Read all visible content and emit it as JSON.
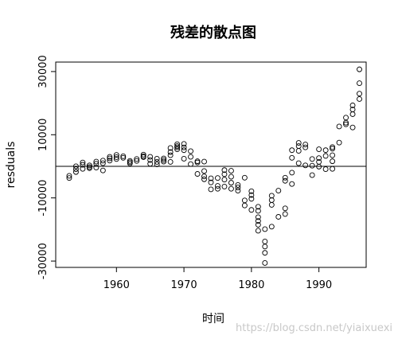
{
  "chart_data": {
    "type": "scatter",
    "title": "残差的散点图",
    "xlabel": "时间",
    "ylabel": "resduals",
    "xlim": [
      1951,
      1997
    ],
    "ylim": [
      -32000,
      33000
    ],
    "x_ticks": [
      1960,
      1970,
      1980,
      1990
    ],
    "x_tick_labels": [
      "1960",
      "1970",
      "1980",
      "1990"
    ],
    "y_ticks": [
      -30000,
      -10000,
      10000,
      30000
    ],
    "y_tick_labels": [
      "-30000",
      "-10000",
      "10000",
      "30000"
    ],
    "reference_line": 0,
    "grid": false,
    "legend": "none",
    "marker": "open-circle",
    "points": [
      [
        1953,
        -3000
      ],
      [
        1953,
        -3700
      ],
      [
        1954,
        0
      ],
      [
        1954,
        -1800
      ],
      [
        1954,
        -900
      ],
      [
        1955,
        -800
      ],
      [
        1955,
        1200
      ],
      [
        1955,
        500
      ],
      [
        1956,
        300
      ],
      [
        1956,
        -600
      ],
      [
        1956,
        -200
      ],
      [
        1957,
        800
      ],
      [
        1957,
        -400
      ],
      [
        1957,
        1500
      ],
      [
        1958,
        1000
      ],
      [
        1958,
        -1300
      ],
      [
        1958,
        1800
      ],
      [
        1959,
        1800
      ],
      [
        1959,
        2500
      ],
      [
        1959,
        3000
      ],
      [
        1960,
        2900
      ],
      [
        1960,
        2300
      ],
      [
        1960,
        3600
      ],
      [
        1961,
        3200
      ],
      [
        1961,
        2700
      ],
      [
        1962,
        1300
      ],
      [
        1962,
        900
      ],
      [
        1962,
        1700
      ],
      [
        1963,
        1700
      ],
      [
        1963,
        2300
      ],
      [
        1964,
        3700
      ],
      [
        1964,
        2900
      ],
      [
        1964,
        3200
      ],
      [
        1965,
        3000
      ],
      [
        1965,
        2000
      ],
      [
        1965,
        800
      ],
      [
        1966,
        2400
      ],
      [
        1966,
        600
      ],
      [
        1966,
        1400
      ],
      [
        1967,
        2000
      ],
      [
        1967,
        1500
      ],
      [
        1967,
        2500
      ],
      [
        1968,
        4500
      ],
      [
        1968,
        3500
      ],
      [
        1968,
        5800
      ],
      [
        1968,
        1400
      ],
      [
        1969,
        6400
      ],
      [
        1969,
        5400
      ],
      [
        1969,
        6000
      ],
      [
        1969,
        7000
      ],
      [
        1970,
        6000
      ],
      [
        1970,
        7100
      ],
      [
        1970,
        5100
      ],
      [
        1970,
        2400
      ],
      [
        1971,
        4800
      ],
      [
        1971,
        3000
      ],
      [
        1971,
        700
      ],
      [
        1972,
        1200
      ],
      [
        1972,
        1600
      ],
      [
        1972,
        -2400
      ],
      [
        1973,
        1500
      ],
      [
        1973,
        -3200
      ],
      [
        1973,
        -4100
      ],
      [
        1973,
        -1500
      ],
      [
        1974,
        -3800
      ],
      [
        1974,
        -5100
      ],
      [
        1974,
        -7300
      ],
      [
        1975,
        -3700
      ],
      [
        1975,
        -6200
      ],
      [
        1975,
        -7100
      ],
      [
        1976,
        -1200
      ],
      [
        1976,
        -2500
      ],
      [
        1976,
        -4200
      ],
      [
        1976,
        -6400
      ],
      [
        1977,
        -1400
      ],
      [
        1977,
        -3300
      ],
      [
        1977,
        -5200
      ],
      [
        1977,
        -7100
      ],
      [
        1978,
        -5900
      ],
      [
        1978,
        -7700
      ],
      [
        1978,
        -6700
      ],
      [
        1979,
        -3600
      ],
      [
        1979,
        -10800
      ],
      [
        1979,
        -12400
      ],
      [
        1980,
        -7900
      ],
      [
        1980,
        -10300
      ],
      [
        1980,
        -9100
      ],
      [
        1980,
        -13800
      ],
      [
        1981,
        -17300
      ],
      [
        1981,
        -18500
      ],
      [
        1981,
        -20400
      ],
      [
        1981,
        -16100
      ],
      [
        1981,
        -14100
      ],
      [
        1981,
        -12800
      ],
      [
        1982,
        -19900
      ],
      [
        1982,
        -23800
      ],
      [
        1982,
        -25400
      ],
      [
        1982,
        -27400
      ],
      [
        1982,
        -30600
      ],
      [
        1983,
        -19100
      ],
      [
        1983,
        -12200
      ],
      [
        1983,
        -10700
      ],
      [
        1983,
        -9300
      ],
      [
        1984,
        -16000
      ],
      [
        1984,
        -7700
      ],
      [
        1985,
        -15100
      ],
      [
        1985,
        -13300
      ],
      [
        1985,
        -4600
      ],
      [
        1985,
        -3600
      ],
      [
        1986,
        -5600
      ],
      [
        1986,
        -2000
      ],
      [
        1986,
        2700
      ],
      [
        1986,
        5100
      ],
      [
        1987,
        7400
      ],
      [
        1987,
        6400
      ],
      [
        1987,
        4900
      ],
      [
        1987,
        1000
      ],
      [
        1988,
        6000
      ],
      [
        1988,
        6900
      ],
      [
        1988,
        300
      ],
      [
        1989,
        -2800
      ],
      [
        1989,
        200
      ],
      [
        1989,
        2300
      ],
      [
        1990,
        5400
      ],
      [
        1990,
        2600
      ],
      [
        1990,
        1400
      ],
      [
        1990,
        -100
      ],
      [
        1991,
        3300
      ],
      [
        1991,
        5100
      ],
      [
        1991,
        -900
      ],
      [
        1992,
        -800
      ],
      [
        1992,
        1600
      ],
      [
        1992,
        3500
      ],
      [
        1992,
        5600
      ],
      [
        1992,
        6100
      ],
      [
        1993,
        7500
      ],
      [
        1993,
        12600
      ],
      [
        1994,
        13300
      ],
      [
        1994,
        13800
      ],
      [
        1994,
        15400
      ],
      [
        1995,
        18000
      ],
      [
        1995,
        16500
      ],
      [
        1995,
        12300
      ],
      [
        1995,
        19300
      ],
      [
        1996,
        21300
      ],
      [
        1996,
        23000
      ],
      [
        1996,
        26300
      ],
      [
        1996,
        30700
      ]
    ]
  },
  "watermark": "https://blog.csdn.net/yiaixuexi"
}
